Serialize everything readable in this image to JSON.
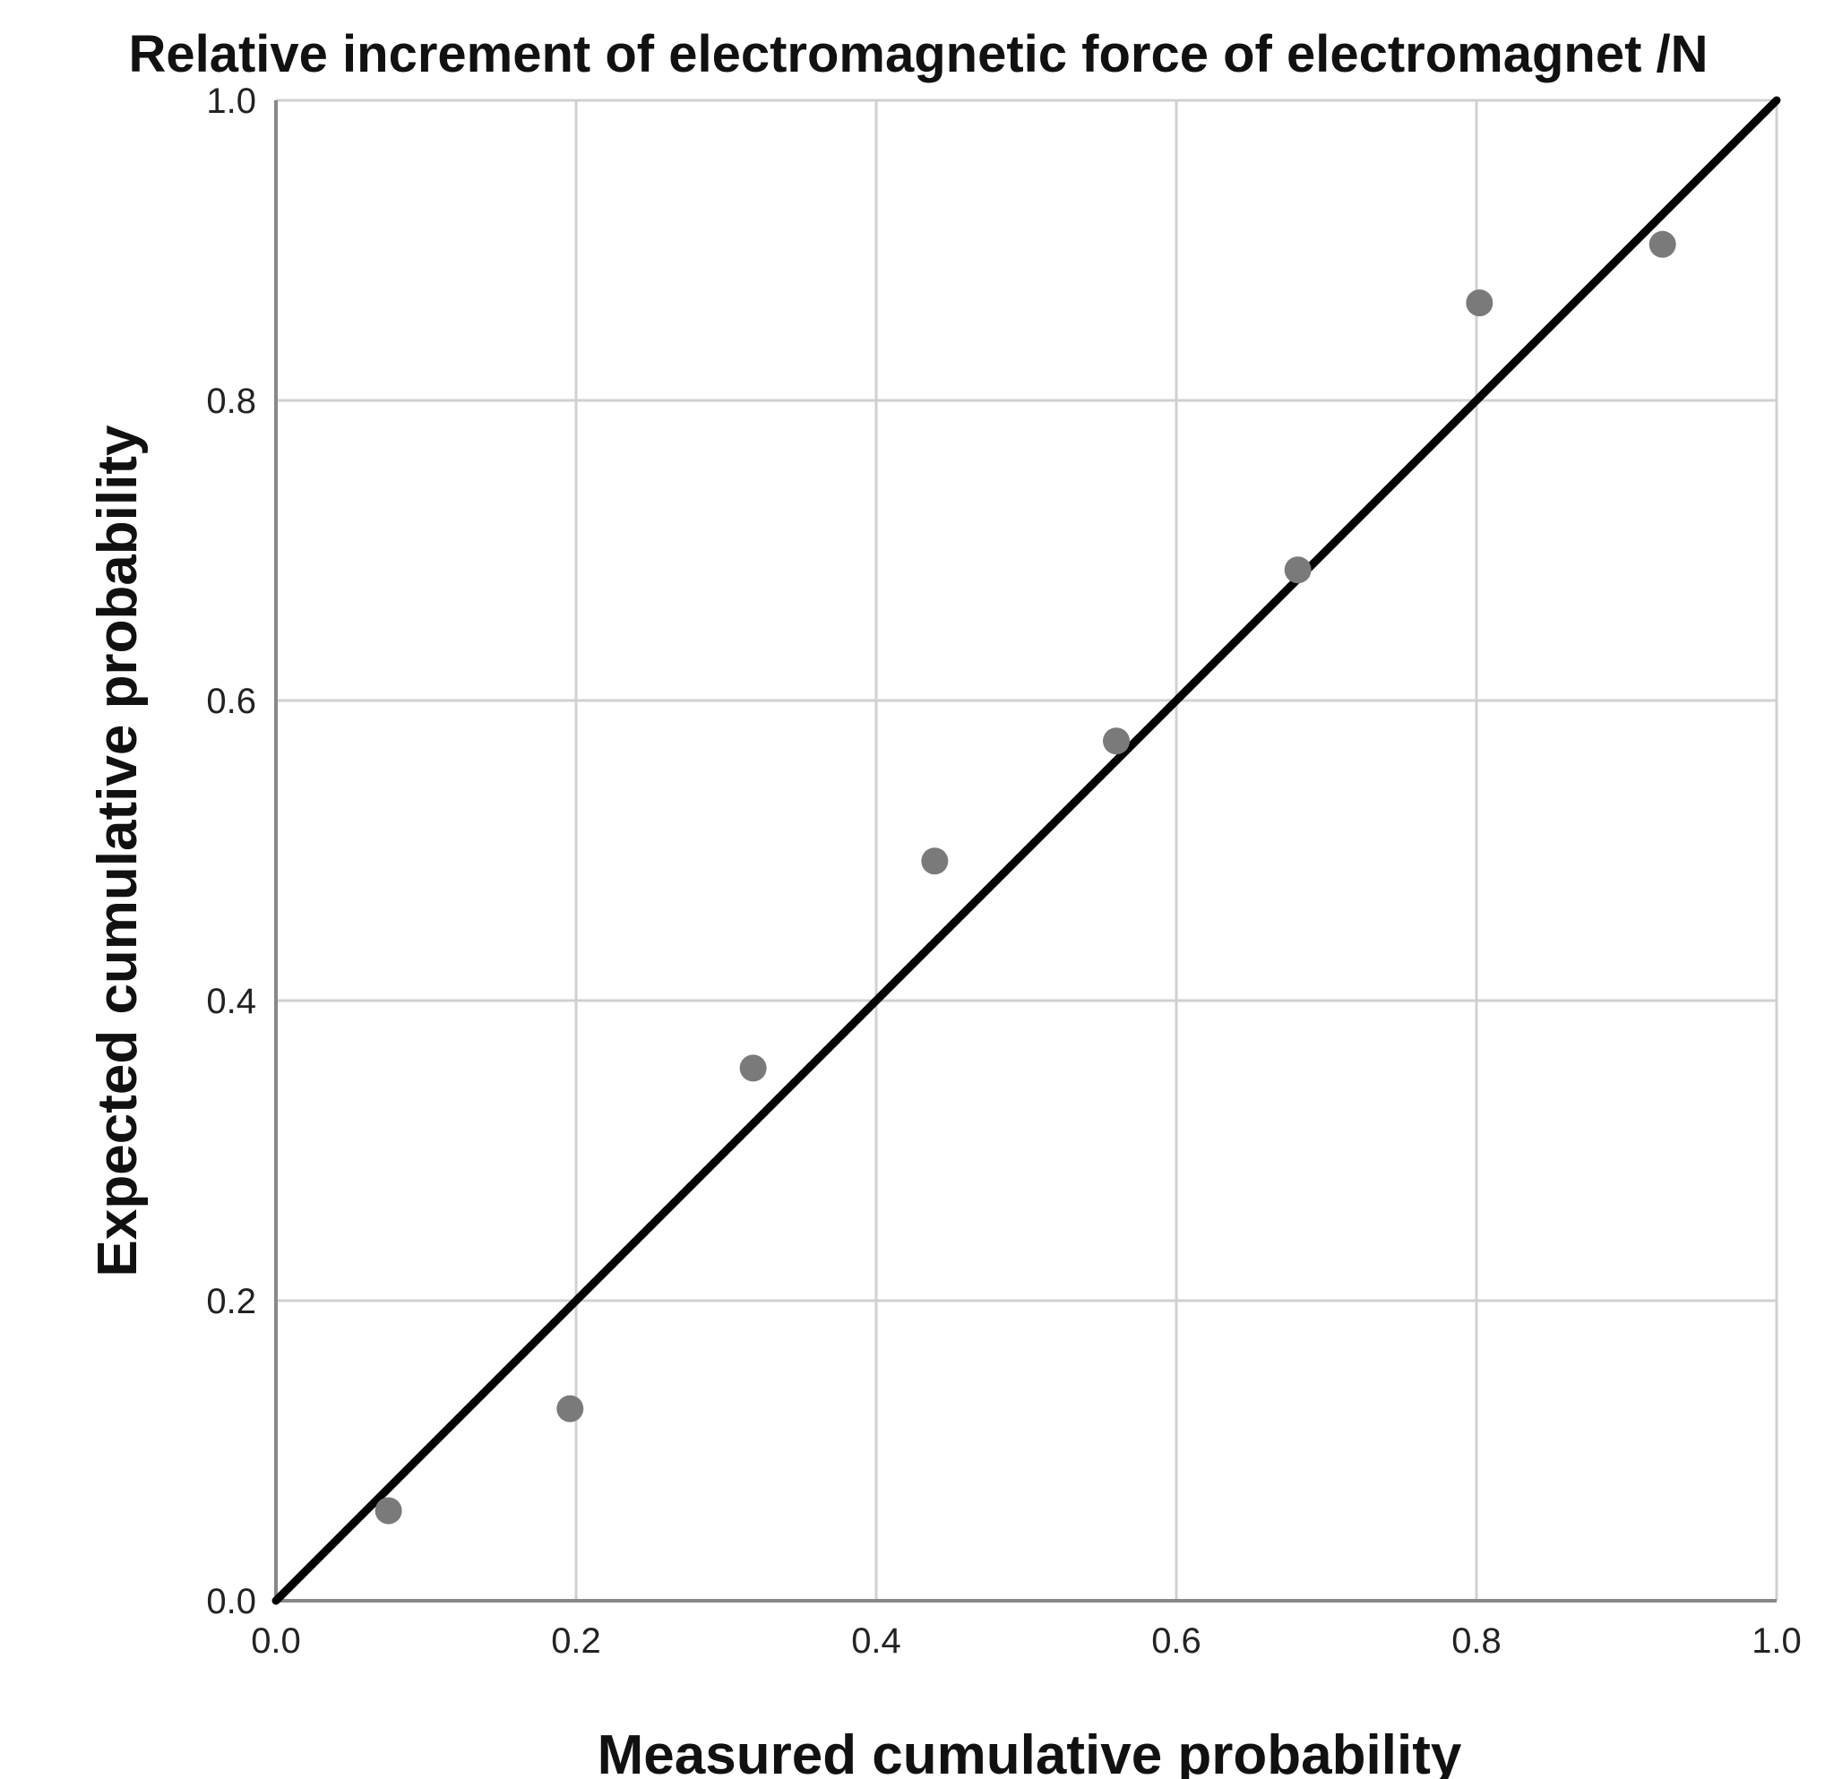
{
  "chart_data": {
    "type": "scatter",
    "title": "Relative increment of electromagnetic force of electromagnet /N",
    "xlabel": "Measured cumulative probability",
    "ylabel": "Expected cumulative probability",
    "xlim": [
      0,
      1
    ],
    "ylim": [
      0,
      1
    ],
    "x_ticks": [
      "0.0",
      "0.2",
      "0.4",
      "0.6",
      "0.8",
      "1.0"
    ],
    "y_ticks": [
      "0.0",
      "0.2",
      "0.4",
      "0.6",
      "0.8",
      "1.0"
    ],
    "grid": true,
    "legend": "none",
    "series": [
      {
        "points": [
          {
            "x": 0.075,
            "y": 0.06
          },
          {
            "x": 0.196,
            "y": 0.128
          },
          {
            "x": 0.318,
            "y": 0.355
          },
          {
            "x": 0.439,
            "y": 0.493
          },
          {
            "x": 0.56,
            "y": 0.573
          },
          {
            "x": 0.681,
            "y": 0.687
          },
          {
            "x": 0.802,
            "y": 0.865
          },
          {
            "x": 0.924,
            "y": 0.904
          }
        ]
      }
    ],
    "reference_line": {
      "from": [
        0,
        0
      ],
      "to": [
        1,
        1
      ]
    },
    "colors": {
      "points": "#7a7a7a",
      "reference_line": "#000000",
      "grid": "#d0d0d0",
      "axis": "#888888"
    }
  }
}
